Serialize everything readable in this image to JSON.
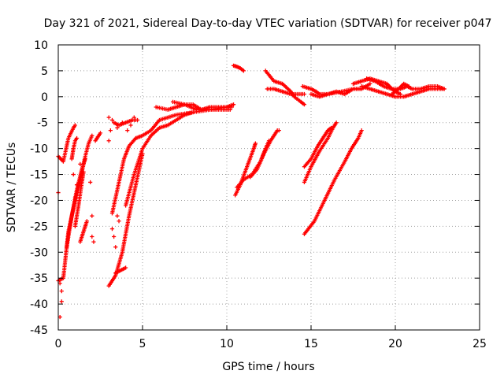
{
  "chart_data": {
    "type": "scatter",
    "title": "Day 321 of 2021, Sidereal Day-to-day VTEC variation (SDTVAR) for receiver p047",
    "xlabel": "GPS time / hours",
    "ylabel": "SDTVAR / TECUs",
    "xlim": [
      0,
      25
    ],
    "ylim": [
      -45,
      10
    ],
    "xticks": [
      "0",
      "5",
      "10",
      "15",
      "20",
      "25"
    ],
    "yticks": [
      "10",
      "5",
      "0",
      "-5",
      "-10",
      "-15",
      "-20",
      "-25",
      "-30",
      "-35",
      "-40",
      "-45"
    ],
    "grid": true,
    "marker": "plus",
    "series": [
      {
        "color": "#ff0000",
        "tracks": [
          [
            [
              0.0,
              -11.5
            ],
            [
              0.3,
              -12.5
            ],
            [
              0.6,
              -8.0
            ],
            [
              0.9,
              -6.0
            ],
            [
              1.0,
              -5.5
            ]
          ],
          [
            [
              0.0,
              -35.5
            ],
            [
              0.3,
              -35.0
            ],
            [
              0.6,
              -26.0
            ],
            [
              1.0,
              -20.0
            ],
            [
              1.3,
              -16.0
            ],
            [
              1.6,
              -11.5
            ],
            [
              1.8,
              -9.0
            ],
            [
              2.0,
              -7.5
            ]
          ],
          [
            [
              0.5,
              -29.0
            ],
            [
              0.8,
              -23.0
            ],
            [
              1.1,
              -18.0
            ],
            [
              1.4,
              -14.0
            ],
            [
              1.6,
              -12.0
            ]
          ],
          [
            [
              0.8,
              -12.0
            ],
            [
              0.9,
              -10.0
            ],
            [
              1.0,
              -8.5
            ],
            [
              1.1,
              -8.0
            ]
          ],
          [
            [
              1.0,
              -25.0
            ],
            [
              1.2,
              -21.0
            ],
            [
              1.4,
              -16.5
            ],
            [
              1.5,
              -14.5
            ]
          ],
          [
            [
              1.3,
              -28.0
            ],
            [
              1.5,
              -26.0
            ],
            [
              1.7,
              -24.0
            ]
          ],
          [
            [
              2.2,
              -8.5
            ],
            [
              2.4,
              -7.5
            ],
            [
              2.5,
              -7.0
            ]
          ],
          [
            [
              3.0,
              -36.5
            ],
            [
              3.4,
              -34.5
            ],
            [
              3.8,
              -30.0
            ],
            [
              4.2,
              -23.0
            ],
            [
              4.6,
              -17.0
            ],
            [
              5.0,
              -11.0
            ]
          ],
          [
            [
              3.2,
              -22.5
            ],
            [
              3.6,
              -16.5
            ],
            [
              3.9,
              -12.0
            ],
            [
              4.2,
              -9.5
            ],
            [
              4.6,
              -8.0
            ]
          ],
          [
            [
              3.3,
              -5.0
            ],
            [
              3.6,
              -5.5
            ],
            [
              4.0,
              -5.0
            ],
            [
              4.4,
              -4.5
            ],
            [
              4.7,
              -4.5
            ]
          ],
          [
            [
              3.4,
              -34.0
            ],
            [
              3.7,
              -33.5
            ],
            [
              4.0,
              -33.0
            ]
          ],
          [
            [
              4.0,
              -21.0
            ],
            [
              4.5,
              -15.0
            ],
            [
              5.0,
              -10.0
            ],
            [
              5.5,
              -7.5
            ],
            [
              6.0,
              -6.0
            ],
            [
              6.5,
              -5.5
            ],
            [
              7.0,
              -4.5
            ],
            [
              7.5,
              -3.5
            ],
            [
              8.0,
              -3.0
            ]
          ],
          [
            [
              4.6,
              -8.0
            ],
            [
              5.0,
              -7.5
            ],
            [
              5.5,
              -6.5
            ],
            [
              6.0,
              -4.5
            ],
            [
              7.0,
              -3.5
            ],
            [
              8.0,
              -3.0
            ],
            [
              9.0,
              -2.5
            ],
            [
              10.0,
              -2.0
            ],
            [
              10.4,
              -1.5
            ]
          ],
          [
            [
              5.8,
              -2.0
            ],
            [
              6.5,
              -2.5
            ],
            [
              7.0,
              -2.0
            ],
            [
              7.5,
              -1.5
            ],
            [
              8.0,
              -1.5
            ],
            [
              8.5,
              -2.5
            ],
            [
              9.0,
              -2.0
            ],
            [
              9.5,
              -2.0
            ],
            [
              10.0,
              -2.0
            ],
            [
              10.3,
              -2.0
            ]
          ],
          [
            [
              6.8,
              -1.0
            ],
            [
              7.5,
              -1.5
            ],
            [
              8.2,
              -2.5
            ],
            [
              9.0,
              -2.5
            ],
            [
              9.7,
              -2.5
            ],
            [
              10.2,
              -2.5
            ]
          ],
          [
            [
              10.4,
              6.0
            ],
            [
              10.6,
              5.8
            ],
            [
              10.8,
              5.5
            ],
            [
              11.0,
              5.0
            ]
          ],
          [
            [
              10.5,
              -19.0
            ],
            [
              10.8,
              -17.0
            ],
            [
              11.2,
              -13.5
            ],
            [
              11.6,
              -10.0
            ],
            [
              11.7,
              -9.0
            ]
          ],
          [
            [
              10.6,
              -17.5
            ],
            [
              11.0,
              -16.0
            ],
            [
              11.5,
              -15.0
            ],
            [
              12.0,
              -12.5
            ],
            [
              12.3,
              -10.0
            ],
            [
              12.5,
              -8.5
            ]
          ],
          [
            [
              11.4,
              -15.5
            ],
            [
              11.8,
              -14.0
            ],
            [
              12.2,
              -11.0
            ],
            [
              12.6,
              -8.5
            ],
            [
              13.0,
              -6.5
            ],
            [
              13.1,
              -6.5
            ]
          ],
          [
            [
              12.3,
              5.0
            ],
            [
              12.8,
              3.0
            ],
            [
              13.3,
              2.5
            ],
            [
              13.8,
              1.0
            ],
            [
              14.0,
              0.0
            ],
            [
              14.4,
              -1.0
            ],
            [
              14.6,
              -1.5
            ]
          ],
          [
            [
              12.4,
              1.5
            ],
            [
              12.8,
              1.5
            ],
            [
              13.3,
              1.0
            ],
            [
              13.8,
              0.5
            ],
            [
              14.3,
              0.5
            ],
            [
              14.6,
              0.5
            ]
          ],
          [
            [
              14.5,
              2.0
            ],
            [
              15.0,
              1.5
            ],
            [
              15.3,
              1.0
            ],
            [
              15.5,
              0.5
            ],
            [
              16.0,
              0.5
            ],
            [
              16.8,
              1.0
            ],
            [
              17.5,
              1.5
            ],
            [
              18.0,
              1.5
            ],
            [
              18.5,
              2.5
            ]
          ],
          [
            [
              14.6,
              -13.5
            ],
            [
              15.0,
              -12.0
            ],
            [
              15.4,
              -9.5
            ],
            [
              15.8,
              -7.5
            ],
            [
              16.0,
              -6.5
            ],
            [
              16.2,
              -6.0
            ]
          ],
          [
            [
              14.6,
              -16.5
            ],
            [
              15.0,
              -13.5
            ],
            [
              15.5,
              -10.5
            ],
            [
              16.0,
              -8.0
            ],
            [
              16.3,
              -6.0
            ],
            [
              16.5,
              -5.0
            ]
          ],
          [
            [
              14.6,
              -26.5
            ],
            [
              15.2,
              -24.0
            ],
            [
              15.8,
              -20.0
            ],
            [
              16.4,
              -16.0
            ],
            [
              17.0,
              -12.5
            ],
            [
              17.4,
              -10.0
            ],
            [
              17.8,
              -8.0
            ],
            [
              18.0,
              -6.5
            ]
          ],
          [
            [
              15.0,
              0.5
            ],
            [
              15.5,
              0.0
            ],
            [
              16.0,
              0.5
            ],
            [
              16.5,
              1.0
            ],
            [
              17.0,
              0.5
            ],
            [
              17.5,
              1.5
            ],
            [
              18.0,
              1.5
            ]
          ],
          [
            [
              17.5,
              2.5
            ],
            [
              18.0,
              3.0
            ],
            [
              18.5,
              3.5
            ],
            [
              19.0,
              3.0
            ],
            [
              19.5,
              2.5
            ],
            [
              19.8,
              1.5
            ],
            [
              20.0,
              1.0
            ],
            [
              20.3,
              0.5
            ]
          ],
          [
            [
              18.0,
              2.0
            ],
            [
              18.5,
              1.5
            ],
            [
              19.0,
              1.0
            ],
            [
              19.5,
              0.5
            ],
            [
              20.0,
              0.0
            ],
            [
              20.5,
              0.0
            ],
            [
              21.0,
              0.5
            ],
            [
              21.5,
              1.0
            ],
            [
              22.0,
              1.5
            ],
            [
              22.5,
              1.5
            ],
            [
              22.9,
              1.5
            ]
          ],
          [
            [
              18.3,
              3.5
            ],
            [
              18.8,
              3.0
            ],
            [
              19.3,
              2.0
            ],
            [
              19.8,
              1.5
            ],
            [
              20.3,
              1.5
            ],
            [
              20.7,
              2.0
            ],
            [
              21.0,
              1.5
            ],
            [
              21.5,
              1.5
            ],
            [
              22.0,
              2.0
            ],
            [
              22.5,
              2.0
            ],
            [
              22.9,
              1.5
            ]
          ],
          [
            [
              19.8,
              0.5
            ],
            [
              20.2,
              1.5
            ],
            [
              20.5,
              2.5
            ],
            [
              20.8,
              2.0
            ]
          ]
        ],
        "points": [
          [
            0.0,
            -18.5
          ],
          [
            0.1,
            -36.0
          ],
          [
            0.1,
            -42.5
          ],
          [
            0.2,
            -39.5
          ],
          [
            0.2,
            -37.5
          ],
          [
            0.9,
            -15.0
          ],
          [
            1.0,
            -19.5
          ],
          [
            1.1,
            -17.0
          ],
          [
            1.3,
            -13.0
          ],
          [
            1.9,
            -16.5
          ],
          [
            2.0,
            -23.0
          ],
          [
            2.0,
            -27.0
          ],
          [
            2.1,
            -28.0
          ],
          [
            3.0,
            -4.0
          ],
          [
            3.0,
            -8.5
          ],
          [
            3.1,
            -6.5
          ],
          [
            3.2,
            -25.5
          ],
          [
            3.3,
            -27.0
          ],
          [
            3.4,
            -29.0
          ],
          [
            3.5,
            -23.0
          ],
          [
            3.6,
            -24.0
          ],
          [
            3.2,
            -4.5
          ],
          [
            3.5,
            -6.0
          ],
          [
            3.8,
            -5.0
          ],
          [
            4.1,
            -6.5
          ],
          [
            4.3,
            -5.5
          ],
          [
            4.5,
            -4.0
          ]
        ]
      }
    ]
  }
}
